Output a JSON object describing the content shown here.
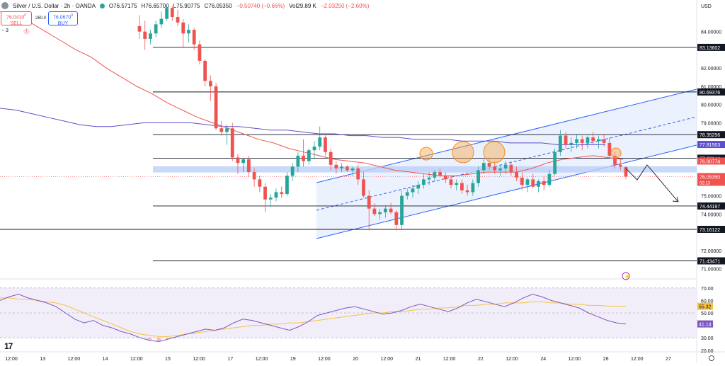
{
  "header": {
    "symbol": "Silver / U.S. Dollar · 2h · OANDA",
    "open": "O76.57175",
    "high": "H76.65700",
    "low": "L75.90775",
    "close": "C76.05350",
    "change": "−0.50740 (−0.66%)",
    "vol_label": "Vol",
    "vol_value": "29.89 K",
    "vol_change": "−2.03250 (−2.60%)"
  },
  "trade": {
    "sell_price": "76.0410",
    "sell_sup": "0",
    "sell_label": "SELL",
    "buy_price": "76.0670",
    "buy_sup": "0",
    "buy_label": "BUY",
    "spread": "260.0",
    "quantity": "3",
    "flag_glyph": "!"
  },
  "currency": "USD",
  "colors": {
    "up": "#26a69a",
    "down": "#ef5350",
    "ma_fast": "#ef5350",
    "ma_slow": "#5b4fcf",
    "channel": "#2962ff",
    "rsi": "#7e57c2",
    "rsi_ma": "#f5c242",
    "level_label_bg": "#131722"
  },
  "chart_data": {
    "type": "candlestick",
    "instrument": "Silver / U.S. Dollar",
    "timeframe": "2h",
    "ylim": [
      70.6,
      85.5
    ],
    "x_ticks": [
      "12:00",
      "13",
      "12:00",
      "14",
      "12:00",
      "15",
      "12:00",
      "17",
      "12:00",
      "19",
      "12:00",
      "20",
      "12:00",
      "21",
      "12:00",
      "22",
      "12:00",
      "24",
      "12:00",
      "26",
      "12:00",
      "27"
    ],
    "y_ticks": [
      "84.00000",
      "82.00000",
      "81.00000",
      "80.00000",
      "79.00000",
      "76.00000",
      "75.00000",
      "74.00000",
      "72.00000",
      "71.00000"
    ],
    "candles": [
      [
        84.3,
        84.9,
        83.6,
        84.0
      ],
      [
        84.0,
        84.6,
        83.0,
        83.6
      ],
      [
        83.6,
        84.1,
        83.3,
        83.9
      ],
      [
        83.9,
        84.6,
        83.7,
        84.4
      ],
      [
        84.4,
        85.1,
        84.2,
        84.7
      ],
      [
        84.7,
        85.4,
        84.6,
        85.3
      ],
      [
        85.3,
        85.4,
        84.6,
        84.8
      ],
      [
        84.8,
        85.2,
        84.3,
        84.5
      ],
      [
        84.5,
        84.7,
        83.1,
        83.9
      ],
      [
        83.9,
        84.4,
        83.4,
        84.1
      ],
      [
        84.1,
        84.2,
        83.0,
        83.3
      ],
      [
        83.3,
        83.5,
        82.2,
        82.4
      ],
      [
        82.4,
        82.5,
        81.0,
        81.3
      ],
      [
        81.3,
        81.6,
        80.2,
        81.0
      ],
      [
        81.0,
        81.2,
        78.6,
        78.7
      ],
      [
        78.7,
        79.1,
        78.3,
        78.5
      ],
      [
        78.5,
        78.9,
        77.8,
        78.7
      ],
      [
        78.7,
        79.0,
        76.9,
        77.1
      ],
      [
        77.1,
        77.3,
        76.2,
        76.8
      ],
      [
        76.8,
        77.1,
        76.3,
        77.0
      ],
      [
        77.0,
        77.2,
        76.0,
        76.3
      ],
      [
        76.3,
        76.5,
        75.5,
        75.9
      ],
      [
        75.9,
        76.1,
        75.2,
        75.5
      ],
      [
        75.5,
        75.7,
        74.1,
        74.8
      ],
      [
        74.8,
        75.1,
        74.4,
        74.9
      ],
      [
        74.9,
        75.4,
        74.7,
        75.2
      ],
      [
        75.2,
        75.5,
        74.9,
        75.1
      ],
      [
        75.1,
        76.3,
        75.0,
        76.1
      ],
      [
        76.1,
        76.8,
        75.8,
        76.6
      ],
      [
        76.6,
        77.4,
        76.3,
        77.2
      ],
      [
        77.2,
        78.1,
        76.6,
        76.9
      ],
      [
        76.9,
        77.6,
        76.7,
        77.5
      ],
      [
        77.5,
        78.0,
        77.0,
        77.7
      ],
      [
        77.7,
        78.8,
        77.5,
        78.2
      ],
      [
        78.2,
        78.3,
        77.2,
        77.4
      ],
      [
        77.4,
        77.6,
        76.4,
        76.7
      ],
      [
        76.7,
        76.9,
        76.2,
        76.5
      ],
      [
        76.5,
        76.8,
        76.3,
        76.6
      ],
      [
        76.6,
        76.7,
        76.3,
        76.4
      ],
      [
        76.4,
        76.6,
        76.1,
        76.5
      ],
      [
        76.5,
        76.7,
        75.6,
        75.9
      ],
      [
        75.9,
        76.3,
        74.9,
        75.0
      ],
      [
        75.0,
        75.3,
        73.1,
        74.3
      ],
      [
        74.3,
        74.6,
        73.9,
        74.0
      ],
      [
        74.0,
        74.3,
        73.7,
        74.1
      ],
      [
        74.1,
        74.5,
        73.8,
        74.3
      ],
      [
        74.3,
        74.6,
        74.0,
        74.1
      ],
      [
        74.1,
        74.2,
        73.1,
        73.4
      ],
      [
        73.4,
        75.3,
        73.2,
        75.0
      ],
      [
        75.0,
        75.4,
        74.8,
        75.2
      ],
      [
        75.2,
        75.6,
        74.9,
        75.4
      ],
      [
        75.4,
        75.8,
        75.1,
        75.6
      ],
      [
        75.6,
        76.2,
        75.4,
        75.9
      ],
      [
        75.9,
        76.3,
        75.6,
        76.0
      ],
      [
        76.0,
        76.4,
        75.8,
        76.3
      ],
      [
        76.3,
        76.5,
        76.0,
        76.1
      ],
      [
        76.1,
        76.3,
        75.7,
        75.9
      ],
      [
        75.9,
        76.1,
        75.4,
        75.6
      ],
      [
        75.6,
        75.9,
        75.3,
        75.7
      ],
      [
        75.7,
        75.9,
        75.1,
        75.3
      ],
      [
        75.3,
        75.6,
        75.0,
        75.2
      ],
      [
        75.2,
        75.9,
        75.0,
        75.7
      ],
      [
        75.7,
        76.6,
        75.5,
        76.4
      ],
      [
        76.4,
        77.0,
        76.2,
        76.8
      ],
      [
        76.8,
        77.1,
        76.4,
        76.6
      ],
      [
        76.6,
        76.9,
        76.2,
        76.4
      ],
      [
        76.4,
        76.7,
        76.1,
        76.5
      ],
      [
        76.5,
        76.9,
        76.2,
        76.7
      ],
      [
        76.7,
        76.9,
        76.1,
        76.3
      ],
      [
        76.3,
        76.6,
        75.8,
        76.0
      ],
      [
        76.0,
        76.3,
        75.3,
        75.6
      ],
      [
        75.6,
        76.0,
        75.2,
        75.9
      ],
      [
        75.9,
        76.2,
        75.4,
        75.5
      ],
      [
        75.5,
        75.9,
        75.2,
        75.8
      ],
      [
        75.8,
        76.1,
        75.3,
        75.6
      ],
      [
        75.6,
        76.4,
        75.5,
        76.2
      ],
      [
        76.2,
        77.6,
        76.1,
        77.4
      ],
      [
        77.4,
        78.6,
        77.2,
        78.3
      ],
      [
        78.3,
        78.5,
        77.6,
        77.8
      ],
      [
        77.8,
        78.2,
        77.4,
        77.9
      ],
      [
        77.9,
        78.4,
        77.6,
        78.1
      ],
      [
        78.1,
        78.3,
        77.5,
        77.9
      ],
      [
        77.9,
        78.3,
        77.6,
        78.2
      ],
      [
        78.2,
        78.5,
        77.8,
        78.0
      ],
      [
        78.0,
        78.3,
        77.6,
        78.1
      ],
      [
        78.1,
        78.4,
        77.7,
        77.9
      ],
      [
        77.9,
        78.2,
        77.1,
        77.2
      ],
      [
        77.2,
        77.4,
        76.5,
        76.7
      ],
      [
        76.7,
        77.0,
        76.4,
        76.6
      ],
      [
        76.57175,
        76.657,
        75.90775,
        76.0535
      ]
    ],
    "ma_fast": [
      85.1,
      84.9,
      84.5,
      84.0,
      83.5,
      83.0,
      82.6,
      82.0,
      81.5,
      81.0,
      80.6,
      80.1,
      79.7,
      79.3,
      79.0,
      78.7,
      78.4,
      78.1,
      77.9,
      77.6,
      77.4,
      77.2,
      77.0,
      76.9,
      76.8,
      76.6,
      76.4,
      76.3,
      76.2,
      76.1,
      76.1,
      76.2,
      76.3,
      76.3,
      76.3,
      76.5,
      76.8,
      77.0,
      77.1,
      77.2,
      77.1,
      77.0
    ],
    "ma_slow": [
      79.8,
      79.7,
      79.5,
      79.3,
      79.1,
      78.9,
      78.8,
      78.8,
      78.9,
      79.0,
      79.0,
      79.0,
      79.0,
      78.9,
      78.8,
      78.8,
      78.7,
      78.6,
      78.6,
      78.5,
      78.4,
      78.4,
      78.3,
      78.3,
      78.2,
      78.2,
      78.1,
      78.1,
      78.1,
      78.0,
      78.0,
      78.0,
      77.9,
      77.9,
      77.9,
      77.8,
      77.8,
      77.8,
      77.8
    ],
    "levels": [
      {
        "price": 83.13602,
        "label": "83.13602"
      },
      {
        "price": 80.69376,
        "label": "80.69376"
      },
      {
        "price": 78.35256,
        "label": "78.35256"
      },
      {
        "price": 77.06144,
        "label": "77.06144"
      },
      {
        "price": 74.44197,
        "label": "74.44197"
      },
      {
        "price": 73.16122,
        "label": "73.16122"
      },
      {
        "price": 71.43471,
        "label": "71.43471"
      }
    ],
    "price_labels": [
      {
        "price": 77.81503,
        "label": "77.81503",
        "color": "#5b4fcf"
      },
      {
        "price": 76.90774,
        "label": "76.90774",
        "color": "#ef5350"
      },
      {
        "price": 76.0535,
        "label": "76.05350",
        "sub": "02:13",
        "color": "#ef5350"
      }
    ],
    "rsi": {
      "ylim": [
        25,
        75
      ],
      "y_ticks": [
        "70.00",
        "60.00",
        "50.00",
        "40.00",
        "30.00",
        "20.00"
      ],
      "upper": 70,
      "lower": 30,
      "value": 41.14,
      "ma_value": 55.32,
      "value_label": "41.14",
      "ma_label": "55.32",
      "series": [
        60,
        63,
        65,
        62,
        60,
        58,
        55,
        50,
        45,
        42,
        44,
        40,
        38,
        35,
        33,
        30,
        28,
        27,
        29,
        31,
        33,
        35,
        37,
        36,
        38,
        42,
        45,
        44,
        42,
        40,
        38,
        36,
        39,
        43,
        48,
        50,
        52,
        54,
        55,
        53,
        51,
        49,
        50,
        52,
        55,
        57,
        55,
        53,
        51,
        54,
        58,
        61,
        59,
        57,
        55,
        58,
        62,
        65,
        63,
        60,
        58,
        56,
        54,
        50,
        47,
        44,
        42,
        41.14
      ],
      "ma": [
        62,
        62,
        61,
        61,
        60,
        59,
        58,
        56,
        53,
        50,
        47,
        44,
        41,
        38,
        35,
        33,
        32,
        31,
        31,
        32,
        33,
        34,
        35,
        36,
        37,
        38,
        39,
        40,
        40,
        41,
        41,
        42,
        42,
        43,
        44,
        45,
        46,
        47,
        48,
        49,
        50,
        50,
        51,
        51,
        52,
        53,
        53,
        54,
        54,
        55,
        56,
        56,
        57,
        57,
        58,
        58,
        58,
        59,
        59,
        58,
        58,
        57,
        57,
        56,
        56,
        55.5,
        55.32,
        55.32
      ]
    }
  }
}
